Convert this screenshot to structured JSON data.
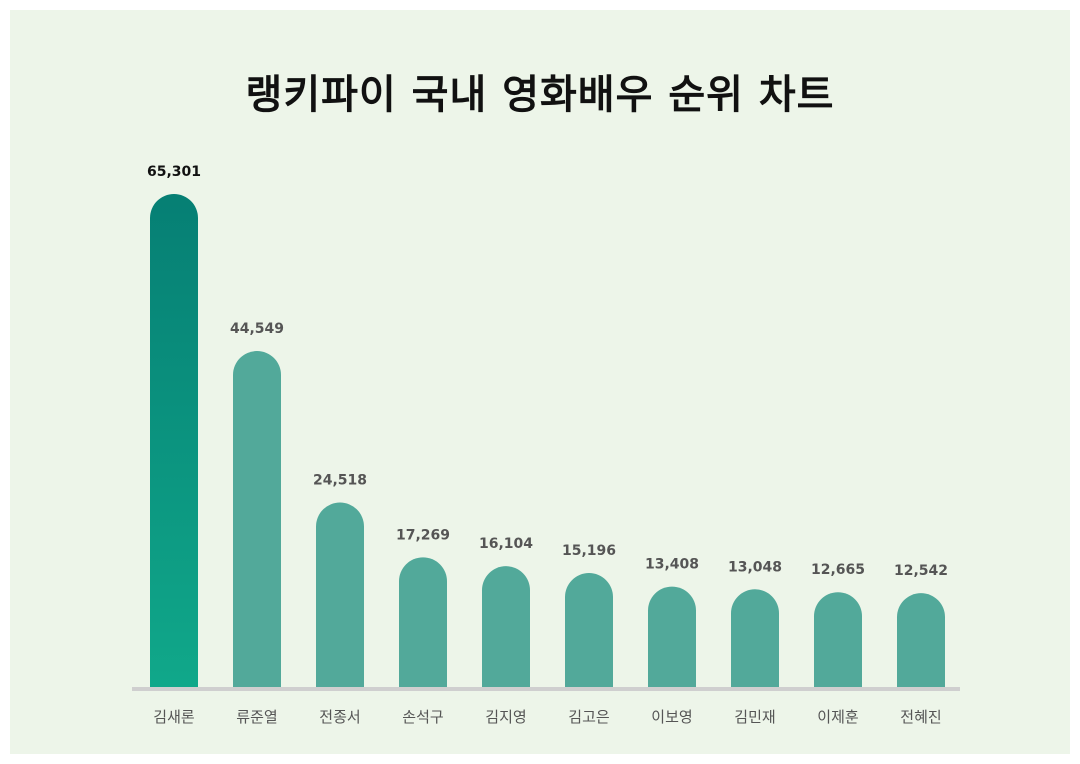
{
  "title": "랭키파이 국내 영화배우 순위 차트",
  "colors": {
    "background": "#edf5e9",
    "bar": "#52a99a",
    "top_bar_gradient": [
      "#067f74",
      "#10a88a"
    ],
    "baseline": "#cfcfcf",
    "top_value_label": "#111111",
    "value_label": "#555555",
    "category_label": "#555555"
  },
  "chart_data": {
    "type": "bar",
    "title": "랭키파이 국내 영화배우 순위 차트",
    "categories": [
      "김새론",
      "류준열",
      "전종서",
      "손석구",
      "김지영",
      "김고은",
      "이보영",
      "김민재",
      "이제훈",
      "전혜진"
    ],
    "values": [
      65301,
      44549,
      24518,
      17269,
      16104,
      15196,
      13408,
      13048,
      12665,
      12542
    ],
    "value_labels": [
      "65,301",
      "44,549",
      "24,518",
      "17,269",
      "16,104",
      "15,196",
      "13,408",
      "13,048",
      "12,665",
      "12,542"
    ],
    "ylim": [
      0,
      65301
    ],
    "grid": false,
    "legend": "none"
  }
}
